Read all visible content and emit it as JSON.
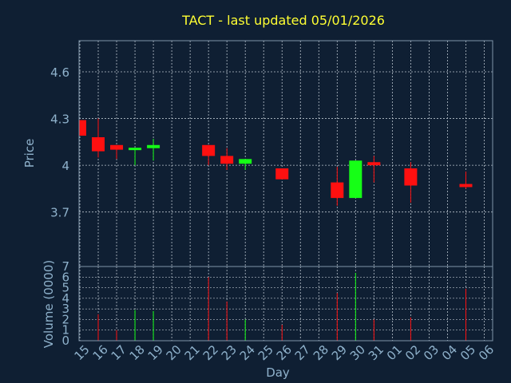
{
  "title": "TACT - last updated 05/01/2026",
  "colors": {
    "background": "#0f1f33",
    "title": "#ffff33",
    "axis_text": "#8fb2cc",
    "frame": "#7f94aa",
    "grid": "#b8c2cc",
    "up": "#16ff16",
    "down": "#ff1010"
  },
  "chart_data": [
    {
      "type": "candlestick",
      "ylabel": "Price",
      "ylim": [
        3.35,
        4.8
      ],
      "yticks": [
        "4.6",
        "4.3",
        "4",
        "3.7"
      ],
      "yticks_values": [
        4.6,
        4.3,
        4.0,
        3.7
      ],
      "grid": true,
      "x_index_note_hidden": true,
      "candles": [
        {
          "day": "15",
          "open": 4.29,
          "high": 4.29,
          "low": 4.19,
          "close": 4.19
        },
        {
          "day": "16",
          "open": 4.18,
          "high": 4.3,
          "low": 4.05,
          "close": 4.09
        },
        {
          "day": "17",
          "open": 4.13,
          "high": 4.13,
          "low": 4.04,
          "close": 4.1
        },
        {
          "day": "18",
          "open": 4.1,
          "high": 4.11,
          "low": 4.0,
          "close": 4.11
        },
        {
          "day": "19",
          "open": 4.11,
          "high": 4.17,
          "low": 4.03,
          "close": 4.13
        },
        {
          "day": "22",
          "open": 4.13,
          "high": 4.13,
          "low": 4.0,
          "close": 4.06
        },
        {
          "day": "23",
          "open": 4.06,
          "high": 4.11,
          "low": 3.97,
          "close": 4.01
        },
        {
          "day": "24",
          "open": 4.01,
          "high": 4.04,
          "low": 3.97,
          "close": 4.04
        },
        {
          "day": "26",
          "open": 3.98,
          "high": 3.98,
          "low": 3.91,
          "close": 3.91
        },
        {
          "day": "29",
          "open": 3.89,
          "high": 3.99,
          "low": 3.74,
          "close": 3.79
        },
        {
          "day": "30",
          "open": 3.79,
          "high": 4.03,
          "low": 3.79,
          "close": 4.03
        },
        {
          "day": "31",
          "open": 4.02,
          "high": 4.06,
          "low": 3.89,
          "close": 4.0
        },
        {
          "day": "02",
          "open": 3.98,
          "high": 4.02,
          "low": 3.76,
          "close": 3.87
        },
        {
          "day": "05",
          "open": 3.88,
          "high": 3.96,
          "low": 3.85,
          "close": 3.86
        }
      ]
    },
    {
      "type": "bar",
      "ylabel": "Volume (0000)",
      "xlabel": "Day",
      "ylim": [
        0,
        7
      ],
      "yticks": [
        "0",
        "1",
        "2",
        "3",
        "4",
        "5",
        "6",
        "7"
      ],
      "categories": [
        "15",
        "16",
        "17",
        "18",
        "19",
        "20",
        "21",
        "22",
        "23",
        "24",
        "25",
        "26",
        "27",
        "28",
        "29",
        "30",
        "31",
        "01",
        "02",
        "03",
        "04",
        "05",
        "06"
      ],
      "volumes": [
        {
          "day": "16",
          "value": 2.5,
          "dir": "down"
        },
        {
          "day": "17",
          "value": 1.0,
          "dir": "down"
        },
        {
          "day": "18",
          "value": 2.9,
          "dir": "up"
        },
        {
          "day": "19",
          "value": 2.8,
          "dir": "up"
        },
        {
          "day": "22",
          "value": 6.0,
          "dir": "down"
        },
        {
          "day": "23",
          "value": 3.7,
          "dir": "down"
        },
        {
          "day": "24",
          "value": 2.0,
          "dir": "up"
        },
        {
          "day": "26",
          "value": 1.5,
          "dir": "down"
        },
        {
          "day": "29",
          "value": 4.5,
          "dir": "down"
        },
        {
          "day": "30",
          "value": 6.4,
          "dir": "up"
        },
        {
          "day": "31",
          "value": 2.0,
          "dir": "down"
        },
        {
          "day": "02",
          "value": 2.2,
          "dir": "down"
        },
        {
          "day": "05",
          "value": 4.9,
          "dir": "down"
        }
      ]
    }
  ]
}
